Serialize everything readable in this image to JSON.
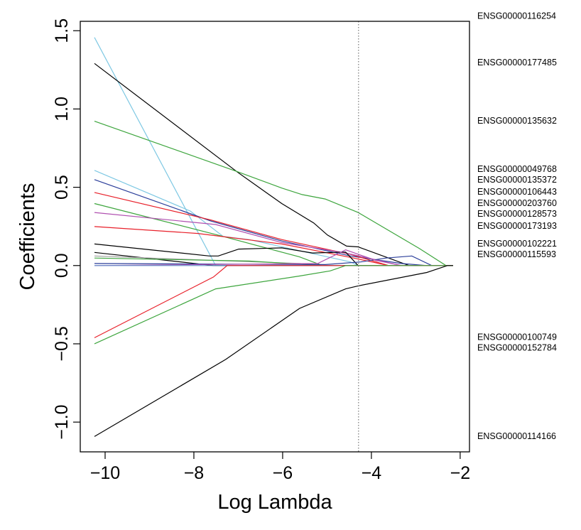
{
  "chart_data": {
    "type": "line",
    "title": "",
    "xlabel": "Log Lambda",
    "ylabel": "Coefficients",
    "xlim": [
      -10.56,
      -1.79
    ],
    "ylim": [
      -1.19,
      1.56
    ],
    "xticks": [
      -10,
      -8,
      -6,
      -4,
      -2
    ],
    "xtick_labels": [
      "−10",
      "−8",
      "−6",
      "−4",
      "−2"
    ],
    "yticks": [
      -1.0,
      -0.5,
      0.0,
      0.5,
      1.0,
      1.5
    ],
    "ytick_labels": [
      "−1.0",
      "−0.5",
      "0.0",
      "0.5",
      "1.0",
      "1.5"
    ],
    "grid": false,
    "vline": {
      "x": -4.29,
      "style": "dotted",
      "color": "#777777"
    },
    "series": [
      {
        "color": "#7EC8E3",
        "points": [
          [
            -10.24,
            1.457
          ],
          [
            -7.51,
            0
          ],
          [
            -2.16,
            0
          ]
        ]
      },
      {
        "color": "#000000",
        "points": [
          [
            -10.24,
            1.291
          ],
          [
            -7.02,
            0.597
          ],
          [
            -6.02,
            0.396
          ],
          [
            -5.3,
            0.272
          ],
          [
            -4.99,
            0.195
          ],
          [
            -4.56,
            0.124
          ],
          [
            -4.3,
            0.119
          ],
          [
            -3.15,
            0
          ],
          [
            -2.16,
            0
          ]
        ]
      },
      {
        "color": "#3DA53D",
        "points": [
          [
            -10.24,
            0.922
          ],
          [
            -7.05,
            0.603
          ],
          [
            -6.02,
            0.495
          ],
          [
            -5.56,
            0.453
          ],
          [
            -5.04,
            0.425
          ],
          [
            -4.3,
            0.339
          ],
          [
            -2.92,
            0.109
          ],
          [
            -2.32,
            0
          ],
          [
            -2.16,
            0
          ]
        ]
      },
      {
        "color": "#7EC8E3",
        "points": [
          [
            -10.24,
            0.608
          ],
          [
            -8.08,
            0.348
          ],
          [
            -7.34,
            0.186
          ],
          [
            -6.76,
            0.166
          ],
          [
            -4.47,
            0.023
          ],
          [
            -4.3,
            0
          ],
          [
            -2.16,
            0
          ]
        ]
      },
      {
        "color": "#2B3E9A",
        "points": [
          [
            -10.24,
            0.549
          ],
          [
            -7.62,
            0.285
          ],
          [
            -6.02,
            0.157
          ],
          [
            -4.47,
            0.061
          ],
          [
            -3.32,
            0.013
          ],
          [
            -2.75,
            0
          ],
          [
            -2.16,
            0
          ]
        ]
      },
      {
        "color": "#E8202A",
        "points": [
          [
            -10.24,
            0.467
          ],
          [
            -7.62,
            0.291
          ],
          [
            -6.02,
            0.166
          ],
          [
            -4.47,
            0.071
          ],
          [
            -3.61,
            0
          ],
          [
            -2.16,
            0
          ]
        ]
      },
      {
        "color": "#3DA53D",
        "points": [
          [
            -10.24,
            0.396
          ],
          [
            -7.34,
            0.186
          ],
          [
            -5.62,
            0.055
          ],
          [
            -5.1,
            0
          ],
          [
            -2.16,
            0
          ]
        ]
      },
      {
        "color": "#B050B0",
        "points": [
          [
            -10.24,
            0.339
          ],
          [
            -7.51,
            0.262
          ],
          [
            -6.02,
            0.147
          ],
          [
            -4.58,
            0.08
          ],
          [
            -3.32,
            0
          ],
          [
            -2.16,
            0
          ]
        ]
      },
      {
        "color": "#E8202A",
        "points": [
          [
            -10.24,
            0.249
          ],
          [
            -7.91,
            0.205
          ],
          [
            -6.02,
            0.138
          ],
          [
            -4.47,
            0.052
          ],
          [
            -3.61,
            0
          ],
          [
            -2.16,
            0
          ]
        ]
      },
      {
        "color": "#000000",
        "points": [
          [
            -10.24,
            0.138
          ],
          [
            -7.65,
            0.061
          ],
          [
            -7.45,
            0.061
          ],
          [
            -6.99,
            0.105
          ],
          [
            -6.02,
            0.113
          ],
          [
            -5.33,
            0.08
          ],
          [
            -4.58,
            0.086
          ],
          [
            -4.3,
            0
          ],
          [
            -2.16,
            0
          ]
        ]
      },
      {
        "color": "#000000",
        "points": [
          [
            -10.24,
            0.084
          ],
          [
            -7.56,
            0
          ],
          [
            -2.16,
            0
          ]
        ]
      },
      {
        "color": "#9E9E9E",
        "points": [
          [
            -10.24,
            0.061
          ],
          [
            -7.56,
            0.033
          ],
          [
            -5.62,
            0.013
          ],
          [
            -5.04,
            0
          ],
          [
            -2.16,
            0
          ]
        ]
      },
      {
        "color": "#3DA53D",
        "points": [
          [
            -10.24,
            0.048
          ],
          [
            -6.76,
            0.029
          ],
          [
            -5.1,
            0
          ],
          [
            -2.16,
            0
          ]
        ]
      },
      {
        "color": "#2B3E9A",
        "points": [
          [
            -10.24,
            0.013
          ],
          [
            -5.04,
            0.006
          ],
          [
            -4.24,
            0.023
          ],
          [
            -3.67,
            0.048
          ],
          [
            -3.09,
            0.061
          ],
          [
            -2.64,
            0
          ],
          [
            -2.16,
            0
          ]
        ]
      },
      {
        "color": "#B050B0",
        "points": [
          [
            -10.24,
            0
          ],
          [
            -5.21,
            0.013
          ],
          [
            -4.58,
            0.1
          ],
          [
            -3.9,
            0.033
          ],
          [
            -3.32,
            0
          ],
          [
            -2.16,
            0
          ]
        ]
      },
      {
        "color": "#5B8DC9",
        "points": [
          [
            -10.24,
            0
          ],
          [
            -2.16,
            0
          ]
        ]
      },
      {
        "color": "#E8202A",
        "points": [
          [
            -10.24,
            -0.461
          ],
          [
            -7.56,
            -0.073
          ],
          [
            -7.25,
            0
          ],
          [
            -2.16,
            0
          ]
        ]
      },
      {
        "color": "#3DA53D",
        "points": [
          [
            -10.24,
            -0.5
          ],
          [
            -7.51,
            -0.149
          ],
          [
            -5.62,
            -0.067
          ],
          [
            -4.93,
            -0.034
          ],
          [
            -4.58,
            0
          ],
          [
            -2.16,
            0
          ]
        ]
      },
      {
        "color": "#000000",
        "points": [
          [
            -10.24,
            -1.092
          ],
          [
            -7.28,
            -0.599
          ],
          [
            -5.62,
            -0.274
          ],
          [
            -4.58,
            -0.149
          ],
          [
            -4.3,
            -0.13
          ],
          [
            -2.75,
            -0.044
          ],
          [
            -2.29,
            0
          ],
          [
            -2.16,
            0
          ]
        ]
      }
    ],
    "labels": [
      {
        "text": "ENSG00000116254",
        "value": 1.597
      },
      {
        "text": "ENSG00000177485",
        "value": 1.3
      },
      {
        "text": "ENSG00000135632",
        "value": 0.928
      },
      {
        "text": "ENSG00000049768",
        "value": 0.619
      },
      {
        "text": "ENSG00000135372",
        "value": 0.55
      },
      {
        "text": "ENSG00000106443",
        "value": 0.473
      },
      {
        "text": "ENSG00000203760",
        "value": 0.4
      },
      {
        "text": "ENSG00000128573",
        "value": 0.346
      },
      {
        "text": "ENSG00000173193",
        "value": 0.255
      },
      {
        "text": "ENSG00000102221",
        "value": 0.141
      },
      {
        "text": "ENSG00000115593",
        "value": 0.086
      },
      {
        "text": "ENSG00000100749",
        "value": -0.455
      },
      {
        "text": "ENSG00000152784",
        "value": -0.496
      },
      {
        "text": "ENSG00000114166",
        "value": -1.087
      }
    ]
  }
}
